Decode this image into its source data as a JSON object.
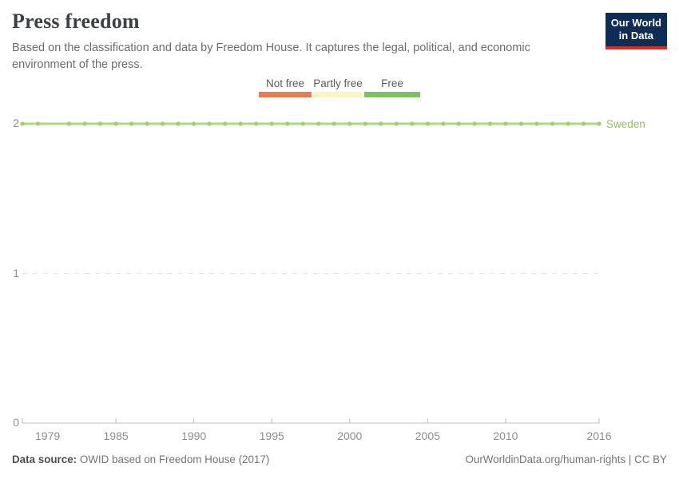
{
  "header": {
    "title": "Press freedom",
    "subtitle": "Based on the classification and data by Freedom House. It captures the legal, political, and economic environment of the press.",
    "logo": {
      "line1": "Our World",
      "line2": "in Data",
      "bg_color": "#0d2d57",
      "stripe_color": "#dc2a1f"
    }
  },
  "legend": {
    "items": [
      {
        "label": "Not free",
        "color": "#f1794a"
      },
      {
        "label": "Partly free",
        "color": "#faf6c0"
      },
      {
        "label": "Free",
        "color": "#7dc25e"
      }
    ]
  },
  "chart_data": {
    "type": "line",
    "title": "Press freedom",
    "xlabel": "",
    "ylabel": "",
    "xlim": [
      1979,
      2016
    ],
    "ylim": [
      0,
      2
    ],
    "x_ticks": [
      1979,
      1985,
      1990,
      1995,
      2000,
      2005,
      2010,
      2016
    ],
    "y_ticks": [
      0,
      1,
      2
    ],
    "grid": "dashed horizontal gridlines at y=1 and y=2, solid x-axis at y=0",
    "value_meaning": {
      "0": "Not free",
      "1": "Partly free",
      "2": "Free"
    },
    "series": [
      {
        "name": "Sweden",
        "color": "#a9da7e",
        "marker_color": "#9ed06e",
        "label_color": "#8fc05c",
        "x": [
          1979,
          1980,
          1982,
          1983,
          1984,
          1985,
          1986,
          1987,
          1988,
          1989,
          1990,
          1991,
          1992,
          1993,
          1994,
          1995,
          1996,
          1997,
          1998,
          1999,
          2000,
          2001,
          2002,
          2003,
          2004,
          2005,
          2006,
          2007,
          2008,
          2009,
          2010,
          2011,
          2012,
          2013,
          2014,
          2015,
          2016
        ],
        "values": [
          2,
          2,
          2,
          2,
          2,
          2,
          2,
          2,
          2,
          2,
          2,
          2,
          2,
          2,
          2,
          2,
          2,
          2,
          2,
          2,
          2,
          2,
          2,
          2,
          2,
          2,
          2,
          2,
          2,
          2,
          2,
          2,
          2,
          2,
          2,
          2,
          2
        ]
      }
    ]
  },
  "footer": {
    "source_label": "Data source:",
    "source_text": "OWID based on Freedom House (2017)",
    "link_text": "OurWorldinData.org/human-rights | CC BY"
  }
}
